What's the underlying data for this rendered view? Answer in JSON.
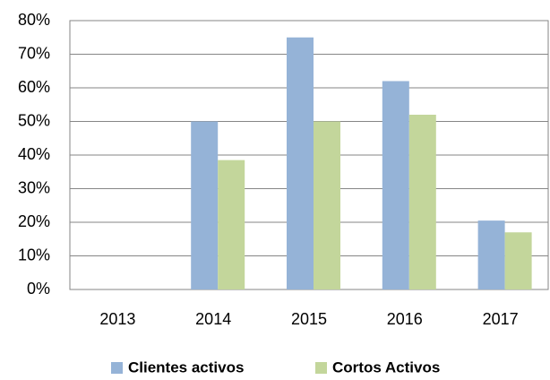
{
  "chart_data": {
    "type": "bar",
    "categories": [
      "2013",
      "2014",
      "2015",
      "2016",
      "2017"
    ],
    "series": [
      {
        "name": "Clientes activos",
        "color": "#95b3d7",
        "values": [
          0,
          50,
          75,
          62,
          20.5
        ]
      },
      {
        "name": "Cortos Activos",
        "color": "#c3d69b",
        "values": [
          0,
          38.5,
          50,
          52,
          17
        ]
      }
    ],
    "ylim": [
      0,
      80
    ],
    "yticks": [
      {
        "value": 0,
        "label": "0%"
      },
      {
        "value": 10,
        "label": "10%"
      },
      {
        "value": 20,
        "label": "20%"
      },
      {
        "value": 30,
        "label": "30%"
      },
      {
        "value": 40,
        "label": "40%"
      },
      {
        "value": 50,
        "label": "50%"
      },
      {
        "value": 60,
        "label": "60%"
      },
      {
        "value": 70,
        "label": "70%"
      },
      {
        "value": 80,
        "label": "80%"
      }
    ],
    "grid": true,
    "legend": "bottom"
  }
}
